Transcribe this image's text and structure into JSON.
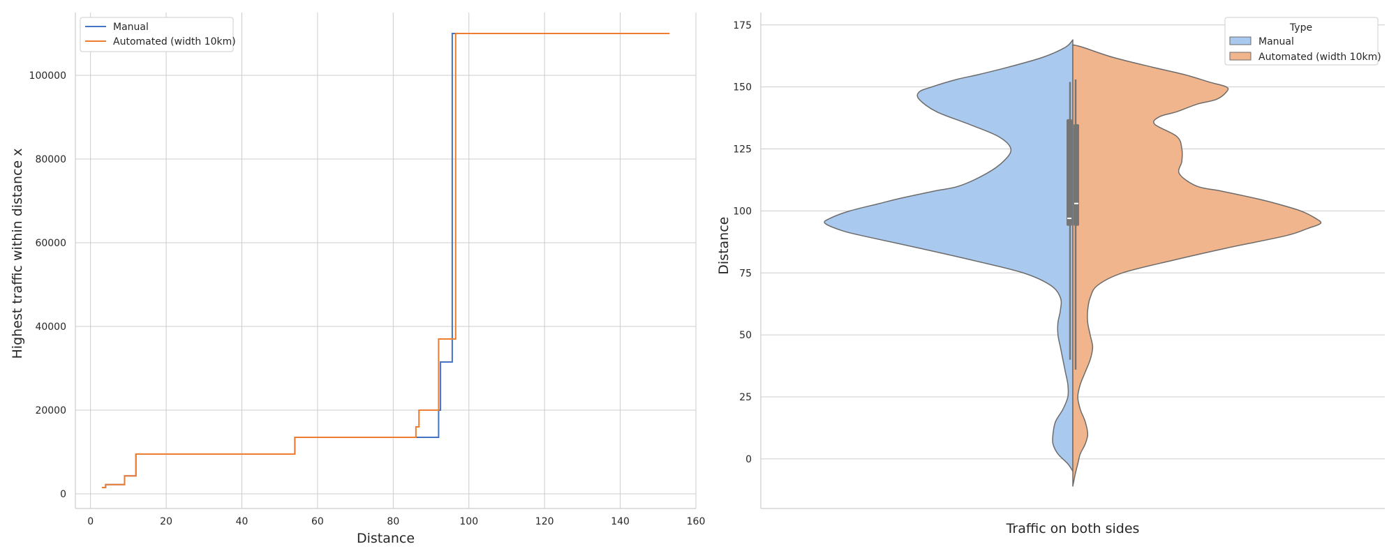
{
  "colors": {
    "manual_line": "#4472c4",
    "automated_line": "#ed7d31",
    "manual_fill": "#aac9ee",
    "automated_fill": "#f0b58c",
    "grid": "#cccccc",
    "axis": "#cccccc",
    "violin_edge": "#6b6b6b",
    "box": "#757575"
  },
  "chart_data": [
    {
      "type": "line",
      "step": "post",
      "xlabel": "Distance",
      "ylabel": "Highest traffic within distance x",
      "xlim": [
        -4,
        160
      ],
      "ylim": [
        -3500,
        115000
      ],
      "x_ticks": [
        0,
        20,
        40,
        60,
        80,
        100,
        120,
        140,
        160
      ],
      "y_ticks": [
        0,
        20000,
        40000,
        60000,
        80000,
        100000
      ],
      "grid": true,
      "legend": {
        "placement": "top-left",
        "entries": [
          "Manual",
          "Automated (width 10km)"
        ]
      },
      "series": [
        {
          "name": "Manual",
          "x": [
            3,
            4,
            9,
            12,
            54,
            86,
            92,
            92.5,
            95,
            95.6,
            153
          ],
          "y": [
            1500,
            2200,
            4300,
            9500,
            13500,
            13500,
            20000,
            31500,
            31500,
            110000,
            110000
          ]
        },
        {
          "name": "Automated (width 10km)",
          "x": [
            3,
            4,
            9,
            12,
            54,
            86,
            86.8,
            92,
            95.8,
            96.5,
            153
          ],
          "y": [
            1500,
            2200,
            4300,
            9500,
            13500,
            16000,
            20000,
            37000,
            37000,
            110000,
            110000
          ]
        }
      ]
    },
    {
      "type": "violin",
      "split": true,
      "xlabel": "Traffic on both sides",
      "ylabel": "Distance",
      "ylim": [
        -20,
        180
      ],
      "y_ticks": [
        0,
        25,
        50,
        75,
        100,
        125,
        150,
        175
      ],
      "grid": true,
      "legend": {
        "title": "Type",
        "placement": "top-right",
        "entries": [
          "Manual",
          "Automated (width 10km)"
        ]
      },
      "series": [
        {
          "name": "Manual",
          "density_y": [
            -5,
            -2,
            2,
            6,
            10,
            15,
            20,
            25,
            30,
            35,
            40,
            45,
            50,
            55,
            60,
            65,
            70,
            75,
            80,
            85,
            90,
            92,
            95,
            97,
            100,
            103,
            105,
            108,
            110,
            115,
            120,
            125,
            130,
            135,
            140,
            145,
            148,
            150,
            153,
            155,
            158,
            162,
            166,
            169
          ],
          "density_w": [
            0,
            0.02,
            0.06,
            0.08,
            0.08,
            0.07,
            0.04,
            0.02,
            0.02,
            0.03,
            0.04,
            0.05,
            0.06,
            0.06,
            0.05,
            0.05,
            0.09,
            0.2,
            0.4,
            0.62,
            0.85,
            0.93,
            1.0,
            0.98,
            0.9,
            0.78,
            0.7,
            0.56,
            0.46,
            0.35,
            0.28,
            0.25,
            0.3,
            0.42,
            0.55,
            0.62,
            0.62,
            0.57,
            0.47,
            0.38,
            0.26,
            0.12,
            0.03,
            0
          ],
          "box": {
            "q1": 94,
            "median": 97,
            "q3": 137,
            "whisker_low": 40,
            "whisker_high": 152
          }
        },
        {
          "name": "Automated (width 10km)",
          "density_y": [
            -11,
            -6,
            -2,
            2,
            6,
            10,
            15,
            20,
            25,
            30,
            35,
            40,
            45,
            50,
            55,
            60,
            65,
            70,
            75,
            80,
            85,
            90,
            93,
            95,
            97,
            100,
            103,
            105,
            108,
            110,
            115,
            120,
            125,
            130,
            135,
            138,
            140,
            143,
            145,
            148,
            150,
            152,
            155,
            158,
            162,
            166,
            167
          ],
          "density_w": [
            0,
            0.01,
            0.02,
            0.03,
            0.05,
            0.06,
            0.05,
            0.03,
            0.02,
            0.03,
            0.05,
            0.07,
            0.08,
            0.07,
            0.06,
            0.06,
            0.07,
            0.1,
            0.2,
            0.4,
            0.62,
            0.86,
            0.95,
            1.0,
            0.98,
            0.92,
            0.82,
            0.74,
            0.6,
            0.5,
            0.43,
            0.44,
            0.44,
            0.42,
            0.33,
            0.35,
            0.42,
            0.5,
            0.58,
            0.62,
            0.62,
            0.55,
            0.45,
            0.32,
            0.16,
            0.04,
            0
          ],
          "box": {
            "q1": 94,
            "median": 103,
            "q3": 135,
            "whisker_low": 36,
            "whisker_high": 153
          }
        }
      ]
    }
  ]
}
